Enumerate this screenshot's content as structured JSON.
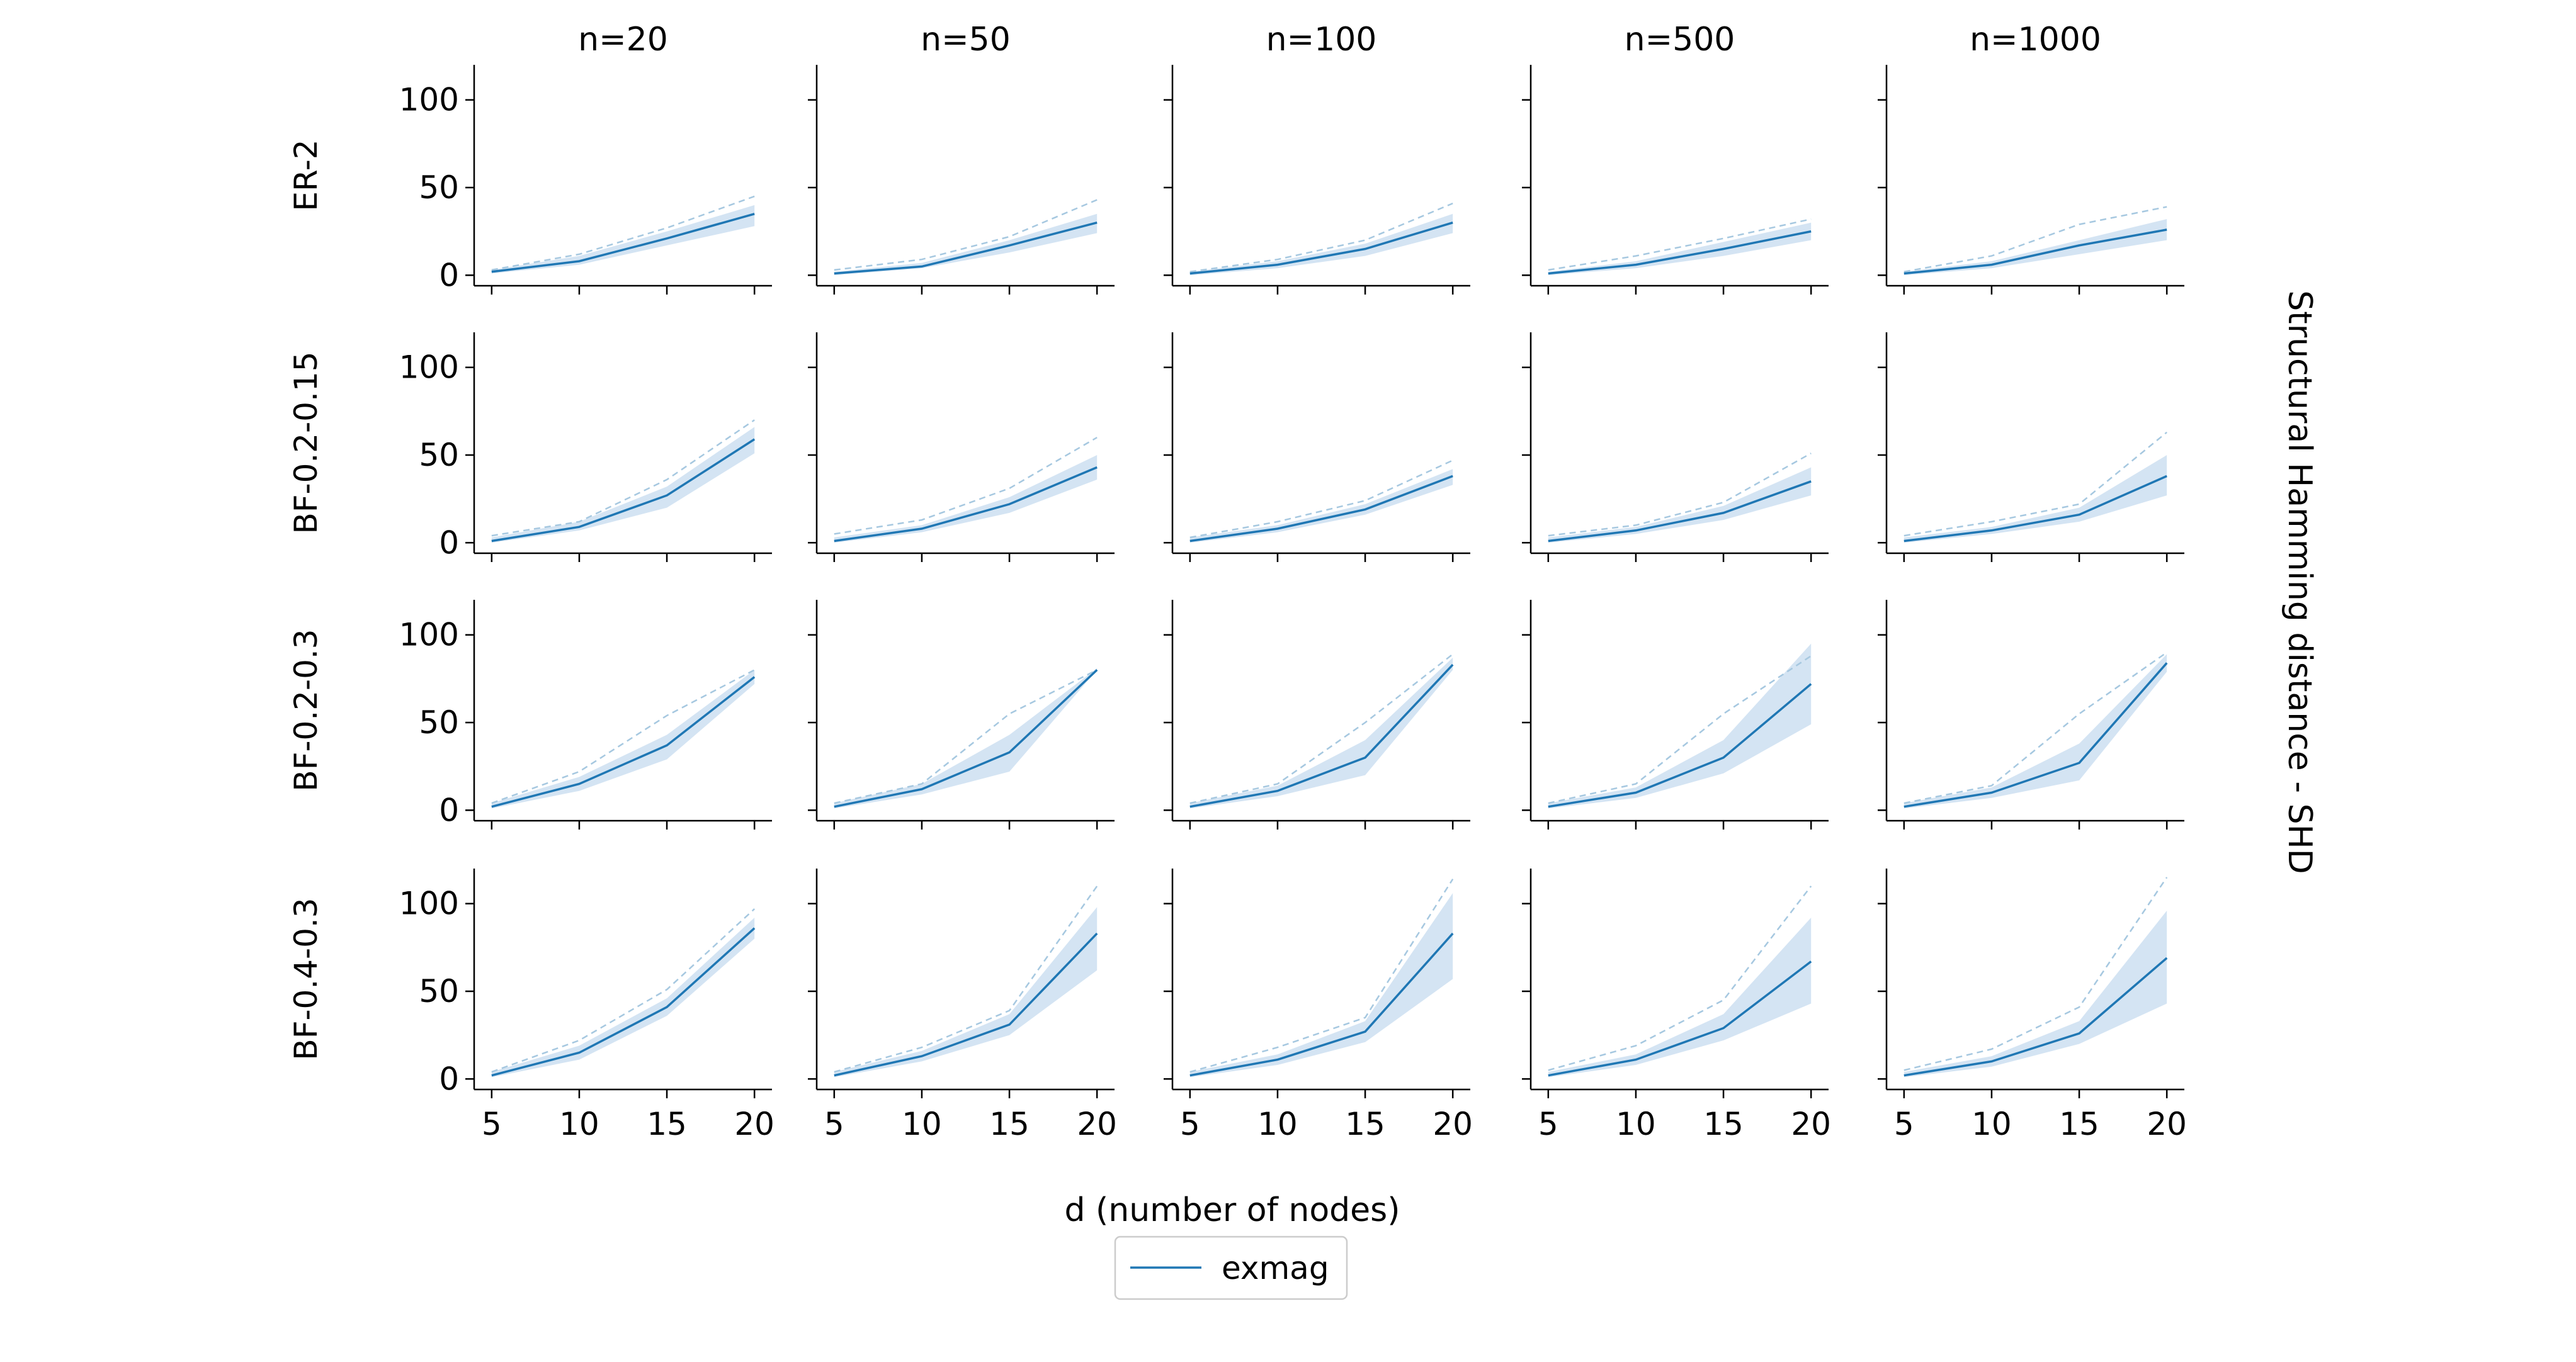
{
  "chart_data": {
    "type": "line",
    "grid": false,
    "xlabel": "d (number of nodes)",
    "ylabel": "Structural Hamming distance - SHD",
    "columns": [
      "n=20",
      "n=50",
      "n=100",
      "n=500",
      "n=1000"
    ],
    "rows": [
      "ER-2",
      "BF-0.2-0.15",
      "BF-0.2-0.3",
      "BF-0.4-0.3"
    ],
    "x": [
      5,
      10,
      15,
      20
    ],
    "x_ticks": [
      "5",
      "10",
      "15",
      "20"
    ],
    "y_ticks": [
      "0",
      "50",
      "100"
    ],
    "xlim": [
      4,
      21
    ],
    "ylim": [
      -6,
      120
    ],
    "legend": {
      "placement": "bottom-center",
      "entries": [
        "exmag"
      ]
    },
    "colors": {
      "line": "#1f77b4",
      "band": "#c6dbef",
      "dashed": "#a6c8e0"
    },
    "panels": [
      [
        {
          "mean": [
            2,
            8,
            21,
            35
          ],
          "lower": [
            1,
            6,
            17,
            28
          ],
          "upper": [
            3,
            11,
            25,
            40
          ],
          "dashed": [
            3,
            12,
            27,
            45
          ]
        },
        {
          "mean": [
            1,
            5,
            17,
            30
          ],
          "lower": [
            0,
            4,
            13,
            24
          ],
          "upper": [
            2,
            7,
            20,
            35
          ],
          "dashed": [
            3,
            9,
            22,
            43
          ]
        },
        {
          "mean": [
            1,
            6,
            15,
            30
          ],
          "lower": [
            0,
            4,
            11,
            24
          ],
          "upper": [
            2,
            8,
            18,
            35
          ],
          "dashed": [
            2,
            9,
            20,
            41
          ]
        },
        {
          "mean": [
            1,
            6,
            15,
            25
          ],
          "lower": [
            0,
            4,
            11,
            20
          ],
          "upper": [
            2,
            8,
            19,
            30
          ],
          "dashed": [
            3,
            11,
            21,
            32
          ]
        },
        {
          "mean": [
            1,
            6,
            17,
            26
          ],
          "lower": [
            0,
            4,
            12,
            20
          ],
          "upper": [
            2,
            8,
            20,
            32
          ],
          "dashed": [
            2,
            11,
            29,
            39
          ]
        }
      ],
      [
        {
          "mean": [
            1,
            9,
            27,
            59
          ],
          "lower": [
            0,
            7,
            20,
            51
          ],
          "upper": [
            3,
            12,
            32,
            66
          ],
          "dashed": [
            4,
            12,
            36,
            70
          ]
        },
        {
          "mean": [
            1,
            8,
            22,
            43
          ],
          "lower": [
            0,
            6,
            17,
            36
          ],
          "upper": [
            3,
            10,
            26,
            50
          ],
          "dashed": [
            5,
            13,
            31,
            60
          ]
        },
        {
          "mean": [
            1,
            8,
            19,
            38
          ],
          "lower": [
            0,
            6,
            16,
            33
          ],
          "upper": [
            3,
            10,
            22,
            42
          ],
          "dashed": [
            3,
            12,
            24,
            47
          ]
        },
        {
          "mean": [
            1,
            7,
            17,
            35
          ],
          "lower": [
            0,
            5,
            13,
            27
          ],
          "upper": [
            3,
            9,
            21,
            43
          ],
          "dashed": [
            4,
            10,
            23,
            51
          ]
        },
        {
          "mean": [
            1,
            7,
            16,
            38
          ],
          "lower": [
            0,
            5,
            12,
            27
          ],
          "upper": [
            3,
            9,
            20,
            50
          ],
          "dashed": [
            4,
            12,
            22,
            63
          ]
        }
      ],
      [
        {
          "mean": [
            2,
            15,
            37,
            76
          ],
          "lower": [
            1,
            11,
            29,
            72
          ],
          "upper": [
            4,
            19,
            43,
            80
          ],
          "dashed": [
            4,
            22,
            54,
            80
          ]
        },
        {
          "mean": [
            2,
            12,
            33,
            80
          ],
          "lower": [
            1,
            9,
            22,
            80
          ],
          "upper": [
            4,
            15,
            43,
            81
          ],
          "dashed": [
            4,
            15,
            55,
            80
          ]
        },
        {
          "mean": [
            2,
            11,
            30,
            83
          ],
          "lower": [
            1,
            8,
            20,
            80
          ],
          "upper": [
            4,
            14,
            40,
            87
          ],
          "dashed": [
            4,
            15,
            50,
            89
          ]
        },
        {
          "mean": [
            2,
            10,
            30,
            72
          ],
          "lower": [
            1,
            7,
            21,
            49
          ],
          "upper": [
            4,
            13,
            40,
            95
          ],
          "dashed": [
            4,
            15,
            55,
            88
          ]
        },
        {
          "mean": [
            2,
            10,
            27,
            84
          ],
          "lower": [
            1,
            7,
            17,
            79
          ],
          "upper": [
            4,
            13,
            38,
            89
          ],
          "dashed": [
            4,
            14,
            55,
            90
          ]
        }
      ],
      [
        {
          "mean": [
            2,
            15,
            41,
            86
          ],
          "lower": [
            1,
            11,
            36,
            80
          ],
          "upper": [
            4,
            19,
            46,
            92
          ],
          "dashed": [
            4,
            22,
            51,
            97
          ]
        },
        {
          "mean": [
            2,
            13,
            31,
            83
          ],
          "lower": [
            1,
            10,
            25,
            62
          ],
          "upper": [
            4,
            16,
            37,
            98
          ],
          "dashed": [
            4,
            18,
            39,
            110
          ]
        },
        {
          "mean": [
            2,
            11,
            27,
            83
          ],
          "lower": [
            1,
            8,
            21,
            57
          ],
          "upper": [
            4,
            14,
            33,
            106
          ],
          "dashed": [
            4,
            18,
            35,
            114
          ]
        },
        {
          "mean": [
            2,
            11,
            29,
            67
          ],
          "lower": [
            1,
            8,
            22,
            43
          ],
          "upper": [
            4,
            14,
            37,
            92
          ],
          "dashed": [
            5,
            19,
            45,
            110
          ]
        },
        {
          "mean": [
            2,
            10,
            26,
            69
          ],
          "lower": [
            1,
            7,
            20,
            43
          ],
          "upper": [
            4,
            13,
            33,
            96
          ],
          "dashed": [
            5,
            17,
            41,
            115
          ]
        }
      ]
    ]
  }
}
